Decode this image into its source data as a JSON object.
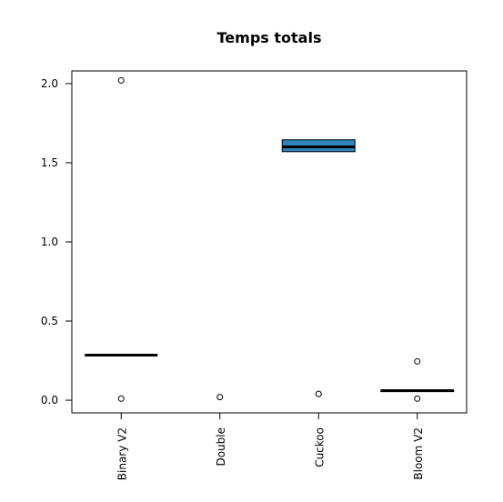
{
  "chart_data": {
    "type": "boxplot",
    "title": "Temps totals",
    "xlabel": "",
    "ylabel": "",
    "ylim": [
      -0.08,
      2.08
    ],
    "yticks": [
      0.0,
      0.5,
      1.0,
      1.5,
      2.0
    ],
    "ytick_labels": [
      "0.0",
      "0.5",
      "1.0",
      "1.5",
      "2.0"
    ],
    "categories": [
      "Binary V2",
      "Double",
      "Cuckoo",
      "Bloom V2"
    ],
    "box_fill": "#3182bd",
    "series": [
      {
        "name": "Binary V2",
        "q1": 0.285,
        "median": 0.285,
        "q3": 0.285,
        "whisker_low": 0.285,
        "whisker_high": 0.285,
        "outliers": [
          2.02,
          0.01
        ]
      },
      {
        "name": "Double",
        "q1": null,
        "median": null,
        "q3": null,
        "whisker_low": null,
        "whisker_high": null,
        "outliers": [
          0.02
        ]
      },
      {
        "name": "Cuckoo",
        "q1": 1.57,
        "median": 1.6,
        "q3": 1.645,
        "whisker_low": 1.57,
        "whisker_high": 1.645,
        "outliers": [
          0.04
        ]
      },
      {
        "name": "Bloom V2",
        "q1": 0.055,
        "median": 0.06,
        "q3": 0.065,
        "whisker_low": 0.055,
        "whisker_high": 0.065,
        "outliers": [
          0.245,
          0.01
        ]
      }
    ]
  }
}
